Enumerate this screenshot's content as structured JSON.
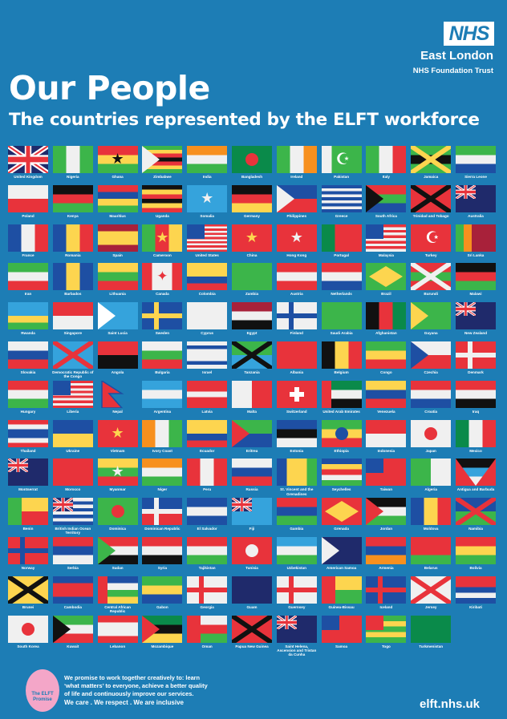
{
  "header": {
    "logo": "NHS",
    "org_name": "East London",
    "org_sub": "NHS Foundation Trust",
    "title": "Our People",
    "subtitle": "The countries represented by the ELFT workforce"
  },
  "palette": {
    "r": "#e8333b",
    "w": "#f0f0f0",
    "g": "#3cb54a",
    "b": "#1e4fa3",
    "y": "#fdd54f",
    "k": "#111111",
    "o": "#f7901e",
    "lb": "#35a3dc",
    "n": "#1f2a6b",
    "m": "#a8213a",
    "dg": "#0a8a4a",
    "bg": "#1d7db5"
  },
  "flags": [
    {
      "n": "United Kingdom",
      "d": "h",
      "c": [
        "n"
      ],
      "m": "union"
    },
    {
      "n": "Nigeria",
      "d": "v",
      "c": [
        "g",
        "w",
        "g"
      ]
    },
    {
      "n": "Ghana",
      "d": "h",
      "c": [
        "r",
        "y",
        "g"
      ],
      "m": "star-k"
    },
    {
      "n": "Zimbabwe",
      "d": "h",
      "c": [
        "g",
        "y",
        "r",
        "k",
        "r",
        "y",
        "g"
      ],
      "m": "tri-w"
    },
    {
      "n": "India",
      "d": "h",
      "c": [
        "o",
        "w",
        "g"
      ]
    },
    {
      "n": "Bangladesh",
      "d": "h",
      "c": [
        "dg"
      ],
      "m": "disc-r"
    },
    {
      "n": "Ireland",
      "d": "v",
      "c": [
        "g",
        "w",
        "o"
      ]
    },
    {
      "n": "Pakistan",
      "d": "v",
      "c": [
        "w",
        "g",
        "g",
        "g"
      ],
      "m": "crescent"
    },
    {
      "n": "Italy",
      "d": "v",
      "c": [
        "g",
        "w",
        "r"
      ]
    },
    {
      "n": "Jamaica",
      "d": "h",
      "c": [
        "g",
        "k",
        "g"
      ],
      "m": "saltire-y"
    },
    {
      "n": "Sierra Leone",
      "d": "h",
      "c": [
        "g",
        "w",
        "b"
      ]
    },
    {
      "n": "Poland",
      "d": "h",
      "c": [
        "w",
        "r"
      ]
    },
    {
      "n": "Kenya",
      "d": "h",
      "c": [
        "k",
        "r",
        "g"
      ]
    },
    {
      "n": "Mauritius",
      "d": "h",
      "c": [
        "r",
        "b",
        "y",
        "g"
      ]
    },
    {
      "n": "Uganda",
      "d": "h",
      "c": [
        "k",
        "y",
        "r",
        "k",
        "y",
        "r"
      ]
    },
    {
      "n": "Somalia",
      "d": "h",
      "c": [
        "lb"
      ],
      "m": "star-w"
    },
    {
      "n": "Germany",
      "d": "h",
      "c": [
        "k",
        "r",
        "y"
      ]
    },
    {
      "n": "Philippines",
      "d": "h",
      "c": [
        "b",
        "r"
      ],
      "m": "tri-w"
    },
    {
      "n": "Greece",
      "d": "h",
      "c": [
        "b",
        "w",
        "b",
        "w",
        "b",
        "w",
        "b",
        "w",
        "b"
      ]
    },
    {
      "n": "South Africa",
      "d": "h",
      "c": [
        "r",
        "g",
        "b"
      ],
      "m": "tri-k"
    },
    {
      "n": "Trinidad and Tobago",
      "d": "h",
      "c": [
        "r"
      ],
      "m": "saltire-k"
    },
    {
      "n": "Australia",
      "d": "h",
      "c": [
        "n"
      ],
      "m": "union"
    },
    {
      "n": "France",
      "d": "v",
      "c": [
        "b",
        "w",
        "r"
      ]
    },
    {
      "n": "Romania",
      "d": "v",
      "c": [
        "b",
        "y",
        "r"
      ]
    },
    {
      "n": "Spain",
      "d": "h",
      "c": [
        "m",
        "y",
        "y",
        "m"
      ]
    },
    {
      "n": "Cameroon",
      "d": "v",
      "c": [
        "g",
        "r",
        "y"
      ],
      "m": "star-y"
    },
    {
      "n": "United States",
      "d": "h",
      "c": [
        "r",
        "w",
        "r",
        "w",
        "r",
        "w",
        "r",
        "w",
        "r",
        "w",
        "r",
        "w",
        "r"
      ],
      "m": "canton-b"
    },
    {
      "n": "China",
      "d": "h",
      "c": [
        "r"
      ],
      "m": "star-y"
    },
    {
      "n": "Hong Kong",
      "d": "h",
      "c": [
        "r"
      ],
      "m": "star-w"
    },
    {
      "n": "Portugal",
      "d": "v",
      "c": [
        "dg",
        "r",
        "r"
      ]
    },
    {
      "n": "Malaysia",
      "d": "h",
      "c": [
        "r",
        "w",
        "r",
        "w",
        "r",
        "w",
        "r",
        "w",
        "r",
        "w"
      ],
      "m": "canton-b"
    },
    {
      "n": "Turkey",
      "d": "h",
      "c": [
        "r"
      ],
      "m": "crescent"
    },
    {
      "n": "Sri Lanka",
      "d": "v",
      "c": [
        "g",
        "o",
        "m",
        "m",
        "m"
      ]
    },
    {
      "n": "Iran",
      "d": "h",
      "c": [
        "g",
        "w",
        "r"
      ]
    },
    {
      "n": "Barbados",
      "d": "v",
      "c": [
        "b",
        "y",
        "b"
      ]
    },
    {
      "n": "Lithuania",
      "d": "h",
      "c": [
        "y",
        "g",
        "r"
      ]
    },
    {
      "n": "Canada",
      "d": "v",
      "c": [
        "r",
        "w",
        "w",
        "r"
      ],
      "m": "leaf"
    },
    {
      "n": "Colombia",
      "d": "h",
      "c": [
        "y",
        "y",
        "b",
        "r"
      ]
    },
    {
      "n": "Zambia",
      "d": "h",
      "c": [
        "g"
      ]
    },
    {
      "n": "Austria",
      "d": "h",
      "c": [
        "r",
        "w",
        "r"
      ]
    },
    {
      "n": "Netherlands",
      "d": "h",
      "c": [
        "r",
        "w",
        "b"
      ]
    },
    {
      "n": "Brazil",
      "d": "h",
      "c": [
        "g"
      ],
      "m": "diamond"
    },
    {
      "n": "Burundi",
      "d": "h",
      "c": [
        "r",
        "g",
        "r"
      ],
      "m": "saltire-w"
    },
    {
      "n": "Malawi",
      "d": "h",
      "c": [
        "k",
        "r",
        "g"
      ]
    },
    {
      "n": "Rwanda",
      "d": "h",
      "c": [
        "lb",
        "lb",
        "y",
        "g"
      ]
    },
    {
      "n": "Singapore",
      "d": "h",
      "c": [
        "r",
        "w"
      ]
    },
    {
      "n": "Saint Lucia",
      "d": "h",
      "c": [
        "lb"
      ],
      "m": "tri-up"
    },
    {
      "n": "Sweden",
      "d": "h",
      "c": [
        "b"
      ],
      "m": "cross-y"
    },
    {
      "n": "Cyprus",
      "d": "h",
      "c": [
        "w"
      ]
    },
    {
      "n": "Egypt",
      "d": "h",
      "c": [
        "m",
        "w",
        "k"
      ]
    },
    {
      "n": "Finland",
      "d": "h",
      "c": [
        "w"
      ],
      "m": "cross-b"
    },
    {
      "n": "Saudi Arabia",
      "d": "h",
      "c": [
        "g"
      ]
    },
    {
      "n": "Afghanistan",
      "d": "v",
      "c": [
        "k",
        "r",
        "dg"
      ]
    },
    {
      "n": "Guyana",
      "d": "h",
      "c": [
        "g"
      ],
      "m": "tri-y"
    },
    {
      "n": "New Zealand",
      "d": "h",
      "c": [
        "n"
      ],
      "m": "union"
    },
    {
      "n": "Slovakia",
      "d": "h",
      "c": [
        "w",
        "b",
        "r"
      ]
    },
    {
      "n": "Democratic Republic of the Congo",
      "d": "h",
      "c": [
        "lb"
      ],
      "m": "saltire-r"
    },
    {
      "n": "Angola",
      "d": "h",
      "c": [
        "r",
        "k"
      ]
    },
    {
      "n": "Bulgaria",
      "d": "h",
      "c": [
        "w",
        "g",
        "r"
      ]
    },
    {
      "n": "Israel",
      "d": "h",
      "c": [
        "w",
        "b",
        "w",
        "w",
        "w",
        "b",
        "w"
      ]
    },
    {
      "n": "Tanzania",
      "d": "h",
      "c": [
        "g",
        "lb"
      ],
      "m": "saltire-k"
    },
    {
      "n": "Albania",
      "d": "h",
      "c": [
        "r"
      ]
    },
    {
      "n": "Belgium",
      "d": "v",
      "c": [
        "k",
        "y",
        "r"
      ]
    },
    {
      "n": "Congo",
      "d": "h",
      "c": [
        "g",
        "y",
        "r"
      ]
    },
    {
      "n": "Czechia",
      "d": "h",
      "c": [
        "w",
        "r"
      ],
      "m": "tri-b"
    },
    {
      "n": "Denmark",
      "d": "h",
      "c": [
        "r"
      ],
      "m": "cross-w"
    },
    {
      "n": "Hungary",
      "d": "h",
      "c": [
        "r",
        "w",
        "g"
      ]
    },
    {
      "n": "Liberia",
      "d": "h",
      "c": [
        "r",
        "w",
        "r",
        "w",
        "r",
        "w",
        "r",
        "w",
        "r",
        "w",
        "r"
      ],
      "m": "canton-b"
    },
    {
      "n": "Nepal",
      "d": "h",
      "c": [
        "bg"
      ],
      "m": "pennant"
    },
    {
      "n": "Argentina",
      "d": "h",
      "c": [
        "lb",
        "w",
        "lb"
      ]
    },
    {
      "n": "Latvia",
      "d": "h",
      "c": [
        "r",
        "r",
        "w",
        "r",
        "r"
      ]
    },
    {
      "n": "Malta",
      "d": "v",
      "c": [
        "w",
        "r"
      ]
    },
    {
      "n": "Switzerland",
      "d": "h",
      "c": [
        "r"
      ],
      "m": "swiss"
    },
    {
      "n": "United Arab Emirates",
      "d": "h",
      "c": [
        "dg",
        "w",
        "k"
      ],
      "m": "bar-r"
    },
    {
      "n": "Venezuela",
      "d": "h",
      "c": [
        "y",
        "b",
        "r"
      ]
    },
    {
      "n": "Croatia",
      "d": "h",
      "c": [
        "r",
        "w",
        "b"
      ]
    },
    {
      "n": "Iraq",
      "d": "h",
      "c": [
        "r",
        "w",
        "k"
      ]
    },
    {
      "n": "Thailand",
      "d": "h",
      "c": [
        "r",
        "w",
        "b",
        "b",
        "w",
        "r"
      ]
    },
    {
      "n": "Ukraine",
      "d": "h",
      "c": [
        "b",
        "y"
      ]
    },
    {
      "n": "Vietnam",
      "d": "h",
      "c": [
        "r"
      ],
      "m": "star-y"
    },
    {
      "n": "Ivory Coast",
      "d": "v",
      "c": [
        "o",
        "w",
        "g"
      ]
    },
    {
      "n": "Ecuador",
      "d": "h",
      "c": [
        "y",
        "y",
        "b",
        "r"
      ]
    },
    {
      "n": "Eritrea",
      "d": "h",
      "c": [
        "g",
        "b"
      ],
      "m": "tri-r"
    },
    {
      "n": "Estonia",
      "d": "h",
      "c": [
        "b",
        "k",
        "w"
      ]
    },
    {
      "n": "Ethiopia",
      "d": "h",
      "c": [
        "g",
        "y",
        "r"
      ],
      "m": "disc-b"
    },
    {
      "n": "Indonesia",
      "d": "h",
      "c": [
        "r",
        "w"
      ]
    },
    {
      "n": "Japan",
      "d": "h",
      "c": [
        "w"
      ],
      "m": "disc-r"
    },
    {
      "n": "Mexico",
      "d": "v",
      "c": [
        "dg",
        "w",
        "r"
      ]
    },
    {
      "n": "Montserrat",
      "d": "h",
      "c": [
        "n"
      ],
      "m": "union"
    },
    {
      "n": "Morocco",
      "d": "h",
      "c": [
        "r"
      ]
    },
    {
      "n": "Myanmar",
      "d": "h",
      "c": [
        "y",
        "g",
        "r"
      ],
      "m": "star-w"
    },
    {
      "n": "Niger",
      "d": "h",
      "c": [
        "o",
        "w",
        "g"
      ]
    },
    {
      "n": "Peru",
      "d": "v",
      "c": [
        "r",
        "w",
        "r"
      ]
    },
    {
      "n": "Russia",
      "d": "h",
      "c": [
        "w",
        "b",
        "r"
      ]
    },
    {
      "n": "St. Vincent and the Grenadines",
      "d": "v",
      "c": [
        "b",
        "y",
        "y",
        "g"
      ]
    },
    {
      "n": "Seychelles",
      "d": "h",
      "c": [
        "b",
        "y",
        "r",
        "w",
        "g"
      ]
    },
    {
      "n": "Taiwan",
      "d": "h",
      "c": [
        "r"
      ],
      "m": "canton-b"
    },
    {
      "n": "Algeria",
      "d": "v",
      "c": [
        "g",
        "w"
      ]
    },
    {
      "n": "Antigua and Barbuda",
      "d": "h",
      "c": [
        "k",
        "lb",
        "w"
      ],
      "m": "vee-r"
    },
    {
      "n": "Benin",
      "d": "h",
      "c": [
        "y",
        "r"
      ],
      "m": "hoist-g"
    },
    {
      "n": "British Indian Ocean Territory",
      "d": "h",
      "c": [
        "w",
        "b",
        "w",
        "b",
        "w",
        "b",
        "w",
        "b"
      ],
      "m": "union"
    },
    {
      "n": "Dominica",
      "d": "h",
      "c": [
        "g"
      ],
      "m": "disc-r"
    },
    {
      "n": "Dominican Republic",
      "d": "h",
      "c": [
        "b",
        "r"
      ],
      "m": "cross-w"
    },
    {
      "n": "El Salvador",
      "d": "h",
      "c": [
        "b",
        "w",
        "b"
      ]
    },
    {
      "n": "Fiji",
      "d": "h",
      "c": [
        "lb"
      ],
      "m": "union"
    },
    {
      "n": "Gambia",
      "d": "h",
      "c": [
        "r",
        "b",
        "g"
      ]
    },
    {
      "n": "Grenada",
      "d": "h",
      "c": [
        "r"
      ],
      "m": "diamond"
    },
    {
      "n": "Jordan",
      "d": "h",
      "c": [
        "k",
        "w",
        "g"
      ],
      "m": "tri-r"
    },
    {
      "n": "Moldova",
      "d": "v",
      "c": [
        "b",
        "y",
        "r"
      ]
    },
    {
      "n": "Namibia",
      "d": "h",
      "c": [
        "b",
        "g"
      ],
      "m": "saltire-r"
    },
    {
      "n": "Norway",
      "d": "h",
      "c": [
        "r"
      ],
      "m": "cross-b"
    },
    {
      "n": "Serbia",
      "d": "h",
      "c": [
        "r",
        "b",
        "w"
      ]
    },
    {
      "n": "Sudan",
      "d": "h",
      "c": [
        "r",
        "w",
        "k"
      ],
      "m": "tri-g"
    },
    {
      "n": "Syria",
      "d": "h",
      "c": [
        "r",
        "w",
        "k"
      ]
    },
    {
      "n": "Tajikistan",
      "d": "h",
      "c": [
        "r",
        "w",
        "g"
      ]
    },
    {
      "n": "Tunisia",
      "d": "h",
      "c": [
        "r"
      ],
      "m": "disc-w"
    },
    {
      "n": "Uzbekistan",
      "d": "h",
      "c": [
        "lb",
        "w",
        "g"
      ]
    },
    {
      "n": "American Samoa",
      "d": "h",
      "c": [
        "n"
      ],
      "m": "tri-w"
    },
    {
      "n": "Armenia",
      "d": "h",
      "c": [
        "r",
        "b",
        "o"
      ]
    },
    {
      "n": "Belarus",
      "d": "h",
      "c": [
        "r",
        "r",
        "g"
      ]
    },
    {
      "n": "Bolivia",
      "d": "h",
      "c": [
        "r",
        "y",
        "g"
      ]
    },
    {
      "n": "Brunei",
      "d": "h",
      "c": [
        "y"
      ],
      "m": "saltire-k"
    },
    {
      "n": "Cambodia",
      "d": "h",
      "c": [
        "b",
        "r",
        "r",
        "b"
      ]
    },
    {
      "n": "Central African Republic",
      "d": "h",
      "c": [
        "b",
        "w",
        "g",
        "y"
      ],
      "m": "bar-r"
    },
    {
      "n": "Gabon",
      "d": "h",
      "c": [
        "g",
        "y",
        "b"
      ]
    },
    {
      "n": "Georgia",
      "d": "h",
      "c": [
        "w"
      ],
      "m": "cross-r"
    },
    {
      "n": "Guam",
      "d": "h",
      "c": [
        "n"
      ]
    },
    {
      "n": "Guernsey",
      "d": "h",
      "c": [
        "w"
      ],
      "m": "cross-r"
    },
    {
      "n": "Guinea-Bissau",
      "d": "h",
      "c": [
        "y",
        "g"
      ],
      "m": "hoist-r"
    },
    {
      "n": "Iceland",
      "d": "h",
      "c": [
        "b"
      ],
      "m": "cross-r"
    },
    {
      "n": "Jersey",
      "d": "h",
      "c": [
        "w"
      ],
      "m": "saltire-r"
    },
    {
      "n": "Kiribati",
      "d": "h",
      "c": [
        "r",
        "r",
        "b",
        "w",
        "b"
      ]
    },
    {
      "n": "South Korea",
      "d": "h",
      "c": [
        "w"
      ],
      "m": "disc-r"
    },
    {
      "n": "Kuwait",
      "d": "h",
      "c": [
        "g",
        "w",
        "r"
      ],
      "m": "tri-k"
    },
    {
      "n": "Lebanon",
      "d": "h",
      "c": [
        "r",
        "w",
        "w",
        "r"
      ]
    },
    {
      "n": "Mozambique",
      "d": "h",
      "c": [
        "dg",
        "k",
        "y"
      ],
      "m": "tri-r"
    },
    {
      "n": "Oman",
      "d": "h",
      "c": [
        "w",
        "r",
        "g"
      ],
      "m": "hoist-r"
    },
    {
      "n": "Papua New Guinea",
      "d": "h",
      "c": [
        "r"
      ],
      "m": "saltire-k"
    },
    {
      "n": "Saint Helena, Ascension and Tristan da Cunha",
      "d": "h",
      "c": [
        "n"
      ],
      "m": "union"
    },
    {
      "n": "Samoa",
      "d": "h",
      "c": [
        "r"
      ],
      "m": "canton-b"
    },
    {
      "n": "Togo",
      "d": "h",
      "c": [
        "g",
        "y",
        "g",
        "y",
        "g"
      ],
      "m": "canton-r"
    },
    {
      "n": "Turkmenistan",
      "d": "h",
      "c": [
        "dg"
      ]
    }
  ],
  "footer": {
    "logo_text": "The ELFT Promise",
    "promise": "We promise to work together creatively to: learn ‘what matters’ to everyone, achieve a better quality of life and continuously improve our services.",
    "values": "We care . We respect . We are inclusive",
    "url": "elft.nhs.uk"
  }
}
